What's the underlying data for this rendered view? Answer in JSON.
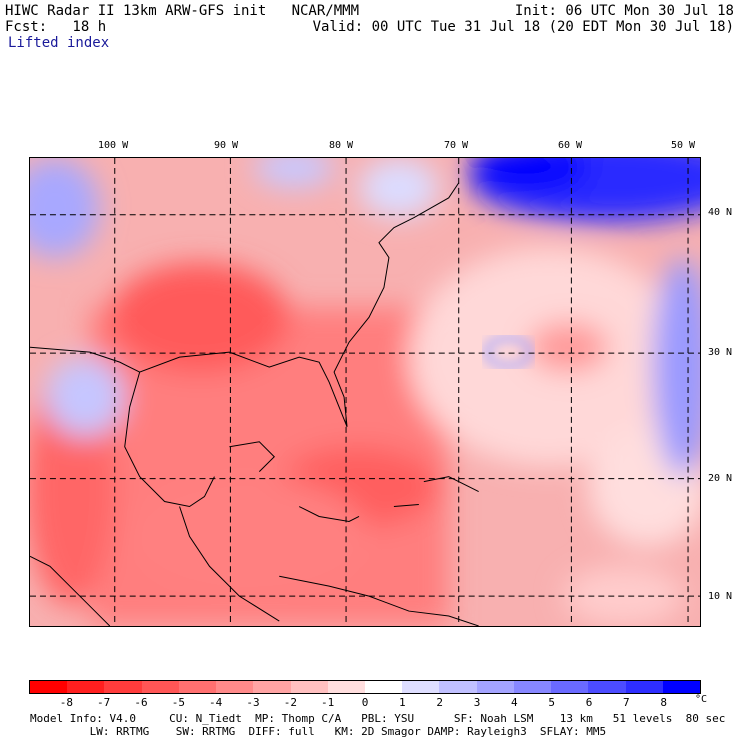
{
  "header": {
    "line1_left": "HIWC Radar II 13km ARW-GFS init   NCAR/MMM",
    "line1_right": "Init: 06 UTC Mon 30 Jul 18",
    "line2_left": "Fcst:   18 h",
    "line2_right": "Valid: 00 UTC Tue 31 Jul 18 (20 EDT Mon 30 Jul 18)",
    "field": "Lifted index"
  },
  "map": {
    "lon_labels": [
      "100 W",
      "90 W",
      "80 W",
      "70 W",
      "60 W",
      "50 W"
    ],
    "lat_labels": [
      "40 N",
      "30 N",
      "20 N",
      "10 N"
    ]
  },
  "colorbar": {
    "labels": [
      "-8",
      "-7",
      "-6",
      "-5",
      "-4",
      "-3",
      "-2",
      "-1",
      "0",
      "1",
      "2",
      "3",
      "4",
      "5",
      "6",
      "7",
      "8"
    ],
    "unit": "°C",
    "colors": [
      "#ff0000",
      "#ff1f1f",
      "#ff3c3c",
      "#ff5656",
      "#ff7070",
      "#ff8a8a",
      "#ffa4a4",
      "#ffc0c0",
      "#ffdede",
      "#ffffff",
      "#dedeff",
      "#c0c0ff",
      "#a4a4ff",
      "#8787ff",
      "#6a6aff",
      "#4c4cff",
      "#2e2eff",
      "#0000ff"
    ]
  },
  "footer": {
    "line1": "Model Info: V4.0     CU: N_Tiedt  MP: Thomp C/A   PBL: YSU      SF: Noah LSM    13 km   51 levels  80 sec",
    "line2": "         LW: RRTMG    SW: RRTMG  DIFF: full   KM: 2D Smagor DAMP: Rayleigh3  SFLAY: MM5"
  }
}
